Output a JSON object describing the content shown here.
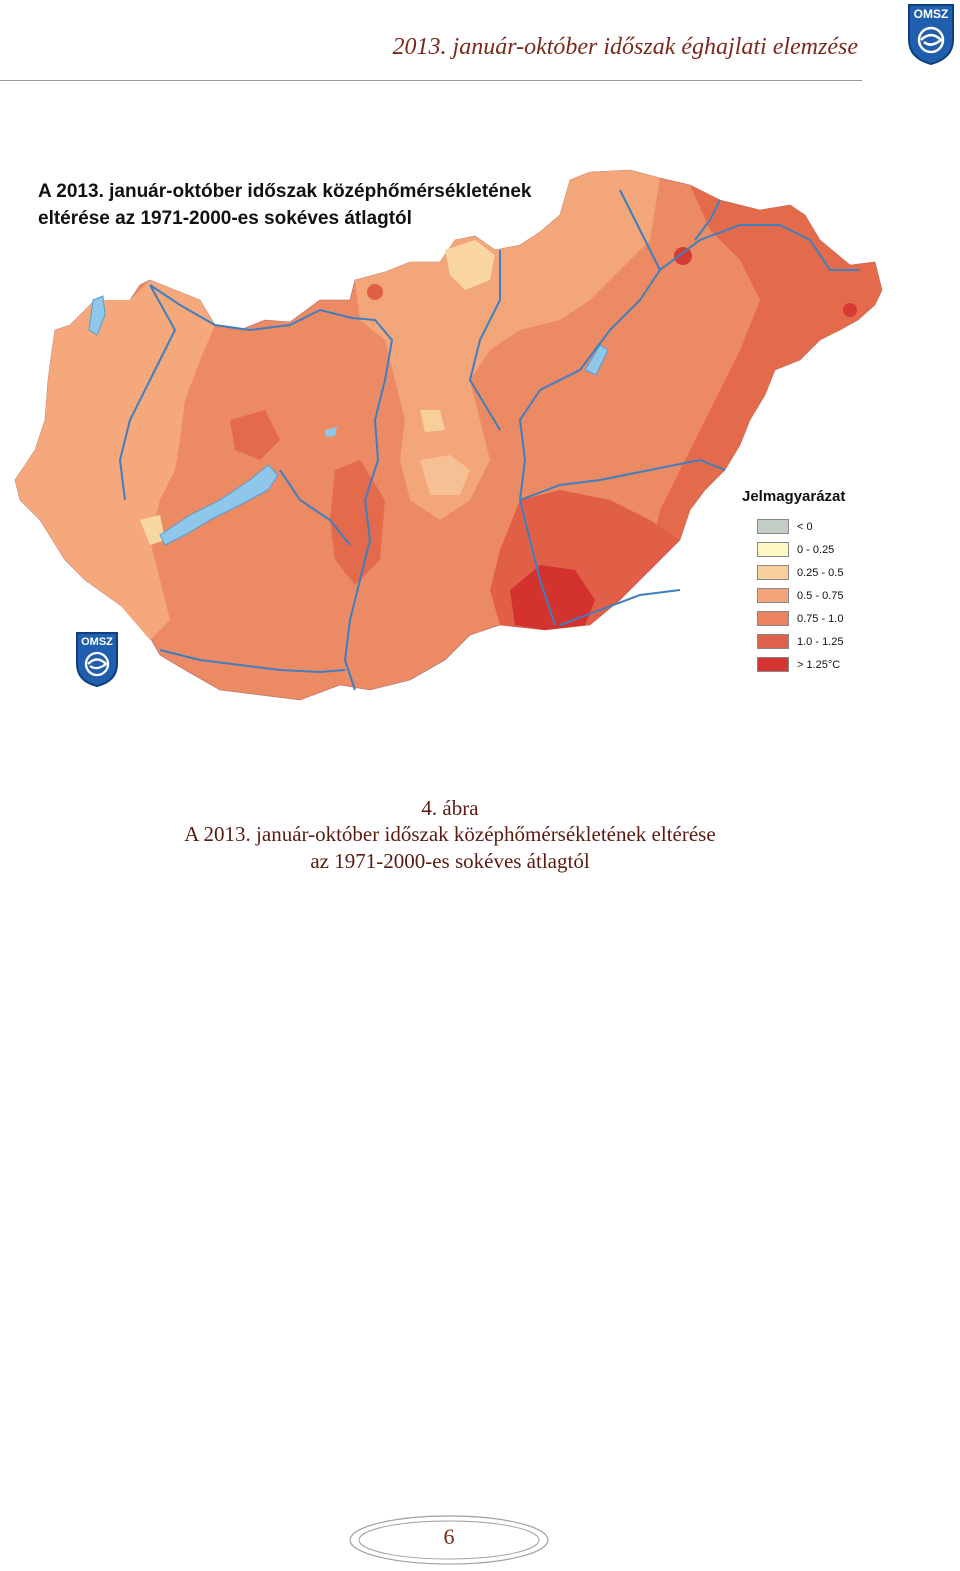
{
  "header": {
    "title": "2013. január-október időszak éghajlati elemzése",
    "logo_text": "OMSZ"
  },
  "map": {
    "title_line1": "A 2013. január-október időszak középhőmérsékletének",
    "title_line2": "eltérése az 1971-2000-es sokéves átlagtól",
    "logo_text": "OMSZ",
    "legend": {
      "title": "Jelmagyarázat",
      "items": [
        {
          "label": "< 0",
          "color": "#c4cdc4"
        },
        {
          "label": "0 - 0.25",
          "color": "#fdf7c3"
        },
        {
          "label": "0.25 - 0.5",
          "color": "#f8cf9a"
        },
        {
          "label": "0.5 - 0.75",
          "color": "#f2a57a"
        },
        {
          "label": "0.75 - 1.0",
          "color": "#ea8460"
        },
        {
          "label": "1.0 - 1.25",
          "color": "#e0614a"
        },
        {
          "label": "> 1.25°C",
          "color": "#d53530"
        }
      ]
    },
    "water_color": "#8ec7ea",
    "river_color": "#3f7fbf"
  },
  "caption": {
    "figure_number": "4. ábra",
    "line1": "A 2013. január-október időszak középhőmérsékletének eltérése",
    "line2": "az 1971-2000-es sokéves átlagtól"
  },
  "footer": {
    "page_number": "6"
  }
}
